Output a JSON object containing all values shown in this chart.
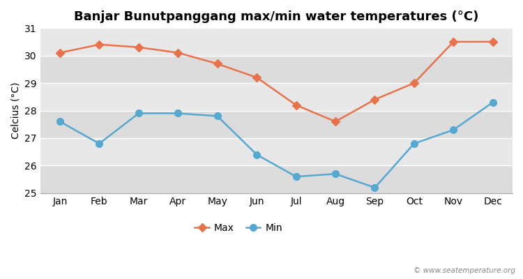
{
  "title": "Banjar Bunutpanggang max/min water temperatures (°C)",
  "ylabel": "Celcius (°C)",
  "months": [
    "Jan",
    "Feb",
    "Mar",
    "Apr",
    "May",
    "Jun",
    "Jul",
    "Aug",
    "Sep",
    "Oct",
    "Nov",
    "Dec"
  ],
  "max_values": [
    30.1,
    30.4,
    30.3,
    30.1,
    29.7,
    29.2,
    28.2,
    27.6,
    28.4,
    29.0,
    30.5,
    30.5
  ],
  "min_values": [
    27.6,
    26.8,
    27.9,
    27.9,
    27.8,
    26.4,
    25.6,
    25.7,
    25.2,
    26.8,
    27.3,
    28.3
  ],
  "max_color": "#e8724a",
  "min_color": "#55a8d0",
  "band_colors": [
    "#dcdcdc",
    "#e8e8e8"
  ],
  "outer_bg": "#ffffff",
  "ylim": [
    25,
    31
  ],
  "yticks": [
    25,
    26,
    27,
    28,
    29,
    30,
    31
  ],
  "legend_labels": [
    "Max",
    "Min"
  ],
  "watermark": "© www.seatemperature.org",
  "title_fontsize": 13,
  "axis_label_fontsize": 10,
  "tick_fontsize": 10
}
